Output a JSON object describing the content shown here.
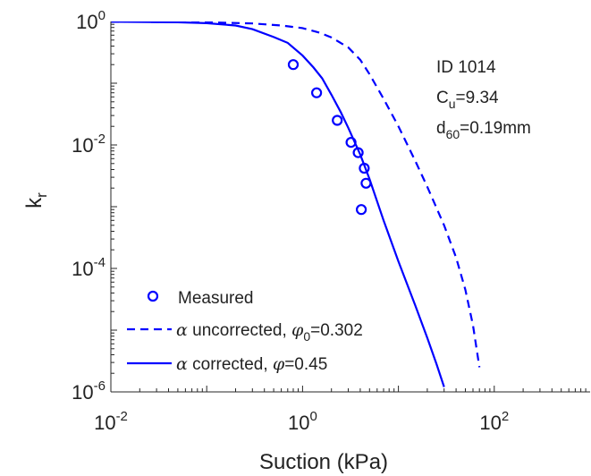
{
  "chart_data": {
    "type": "line",
    "xscale": "log",
    "yscale": "log",
    "xlim": [
      0.01,
      1000
    ],
    "ylim": [
      1e-06,
      1
    ],
    "xticks": [
      {
        "base": "10",
        "exp": "-2",
        "value": 0.01
      },
      {
        "base": "10",
        "exp": "0",
        "value": 1
      },
      {
        "base": "10",
        "exp": "2",
        "value": 100
      }
    ],
    "yticks": [
      {
        "base": "10",
        "exp": "0",
        "value": 1
      },
      {
        "base": "10",
        "exp": "-2",
        "value": 0.01
      },
      {
        "base": "10",
        "exp": "-4",
        "value": 0.0001
      },
      {
        "base": "10",
        "exp": "-6",
        "value": 1e-06
      }
    ],
    "xlabel": "Suction (kPa)",
    "ylabel": {
      "main": "k",
      "sub": "r"
    },
    "annotation": [
      {
        "text": "ID 1014"
      },
      {
        "main": "C",
        "sub": "u",
        "rest": "=9.34"
      },
      {
        "main": "d",
        "sub": "60",
        "rest": "=0.19mm"
      }
    ],
    "legend": {
      "placement": "bottom-left",
      "entries": [
        {
          "parts": [
            {
              "t": "Measured"
            }
          ]
        },
        {
          "parts": [
            {
              "t": "α",
              "sym": true
            },
            {
              "t": " uncorrected, "
            },
            {
              "t": "φ",
              "sym": true
            },
            {
              "t": "0",
              "sub": true
            },
            {
              "t": "=0.302"
            }
          ]
        },
        {
          "parts": [
            {
              "t": "α",
              "sym": true
            },
            {
              "t": " corrected, "
            },
            {
              "t": "φ",
              "sym": true
            },
            {
              "t": "=0.45"
            }
          ]
        }
      ]
    },
    "colors": {
      "series": "#0000ff",
      "axes": "#262626"
    },
    "series": [
      {
        "style": "markers",
        "x": [
          0.8,
          1.4,
          2.3,
          3.2,
          3.8,
          4.4,
          4.6,
          4.1
        ],
        "y": [
          0.2,
          0.07,
          0.025,
          0.011,
          0.0075,
          0.0042,
          0.0024,
          0.0009
        ]
      },
      {
        "style": "dashed",
        "x": [
          0.01,
          0.05,
          0.1,
          0.3,
          0.6,
          1,
          1.5,
          2,
          3,
          4,
          5,
          7,
          10,
          15,
          20,
          30,
          40,
          50,
          60,
          70
        ],
        "y": [
          0.99,
          0.98,
          0.97,
          0.93,
          0.86,
          0.78,
          0.66,
          0.55,
          0.38,
          0.24,
          0.14,
          0.056,
          0.02,
          0.0055,
          0.0021,
          0.0005,
          0.00015,
          4.5e-05,
          1.2e-05,
          2.5e-06
        ]
      },
      {
        "style": "solid",
        "x": [
          0.01,
          0.05,
          0.1,
          0.2,
          0.3,
          0.5,
          0.7,
          1,
          1.3,
          1.6,
          2,
          2.5,
          3,
          4,
          5,
          7,
          10,
          15,
          20,
          25,
          30
        ],
        "y": [
          0.99,
          0.97,
          0.94,
          0.86,
          0.75,
          0.56,
          0.45,
          0.28,
          0.18,
          0.12,
          0.065,
          0.034,
          0.019,
          0.007,
          0.0028,
          0.0006,
          0.00013,
          2.5e-05,
          7.5e-06,
          2.8e-06,
          1.2e-06
        ]
      }
    ]
  }
}
